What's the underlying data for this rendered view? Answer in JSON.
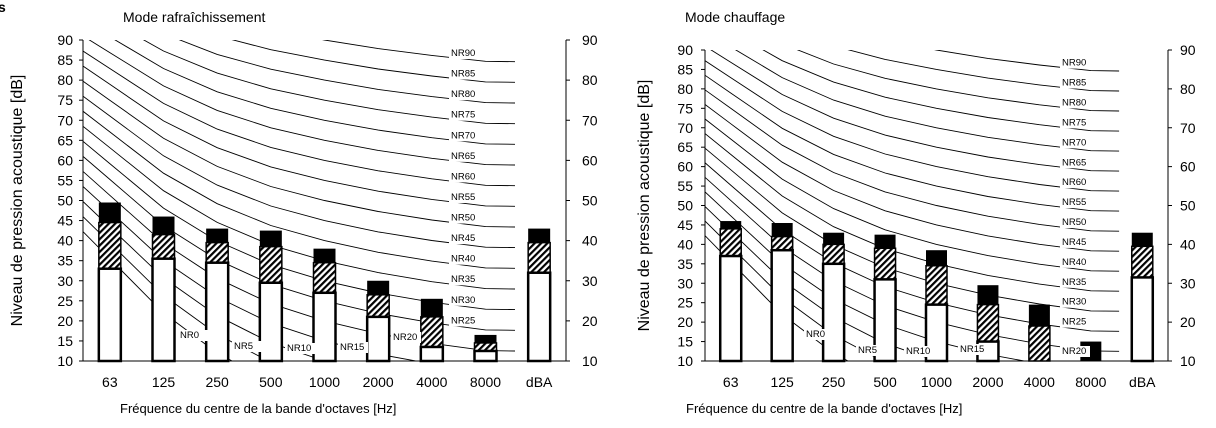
{
  "figure": {
    "corner_mark": "s",
    "ylabel": "Niveau de pression acoustique [dB]"
  },
  "nr_curve_labels": [
    "NR0",
    "NR5",
    "NR10",
    "NR15",
    "NR20",
    "NR25",
    "NR30",
    "NR35",
    "NR40",
    "NR45",
    "NR50",
    "NR55",
    "NR60",
    "NR65",
    "NR70",
    "NR75",
    "NR80",
    "NR85",
    "NR90"
  ],
  "chart_data": [
    {
      "type": "bar",
      "title": "Mode rafraîchissement",
      "xlabel": "Fréquence du centre de la bande d'octaves [Hz]",
      "ylabel": "Niveau de pression acoustique [dB]",
      "categories": [
        "63",
        "125",
        "250",
        "500",
        "1000",
        "2000",
        "4000",
        "8000",
        "dBA"
      ],
      "ylim": [
        10,
        90
      ],
      "yticks": [
        10,
        15,
        20,
        25,
        30,
        35,
        40,
        45,
        50,
        55,
        60,
        65,
        70,
        75,
        80,
        85,
        90
      ],
      "y2ticks": [
        10,
        20,
        30,
        40,
        50,
        60,
        70,
        80,
        90
      ],
      "series": [
        {
          "style": "white",
          "values": [
            33,
            35.5,
            34.5,
            29.5,
            27,
            21,
            13.5,
            12.5,
            32
          ]
        },
        {
          "style": "hatched",
          "values": [
            44.5,
            41.5,
            39.5,
            38.5,
            34.5,
            26.5,
            21,
            14.5,
            39.5
          ]
        },
        {
          "style": "black",
          "values": [
            49.5,
            46,
            43,
            42.5,
            38,
            30,
            25.5,
            16.5,
            43
          ]
        }
      ],
      "nr_curves": [
        0,
        5,
        10,
        15,
        20,
        25,
        30,
        35,
        40,
        45,
        50,
        55,
        60,
        65,
        70,
        75,
        80,
        85,
        90
      ],
      "grid": false
    },
    {
      "type": "bar",
      "title": "Mode chauffage",
      "xlabel": "Fréquence du centre de la bande d'octaves [Hz]",
      "ylabel": "Niveau de pression acoustique [dB]",
      "categories": [
        "63",
        "125",
        "250",
        "500",
        "1000",
        "2000",
        "4000",
        "8000",
        "dBA"
      ],
      "ylim": [
        10,
        90
      ],
      "yticks": [
        10,
        15,
        20,
        25,
        30,
        35,
        40,
        45,
        50,
        55,
        60,
        65,
        70,
        75,
        80,
        85,
        90
      ],
      "y2ticks": [
        10,
        20,
        30,
        40,
        50,
        60,
        70,
        80,
        90
      ],
      "series": [
        {
          "style": "white",
          "values": [
            37,
            38.5,
            35,
            31,
            24.5,
            15,
            10,
            10,
            31.5
          ]
        },
        {
          "style": "hatched",
          "values": [
            44,
            42,
            40,
            39,
            34.5,
            24.5,
            19,
            10,
            39.5
          ]
        },
        {
          "style": "black",
          "values": [
            46,
            45.5,
            43,
            42.5,
            38.5,
            29.5,
            24.5,
            15,
            43
          ]
        }
      ],
      "nr_curves": [
        0,
        5,
        10,
        15,
        20,
        25,
        30,
        35,
        40,
        45,
        50,
        55,
        60,
        65,
        70,
        75,
        80,
        85,
        90
      ],
      "grid": false
    }
  ]
}
